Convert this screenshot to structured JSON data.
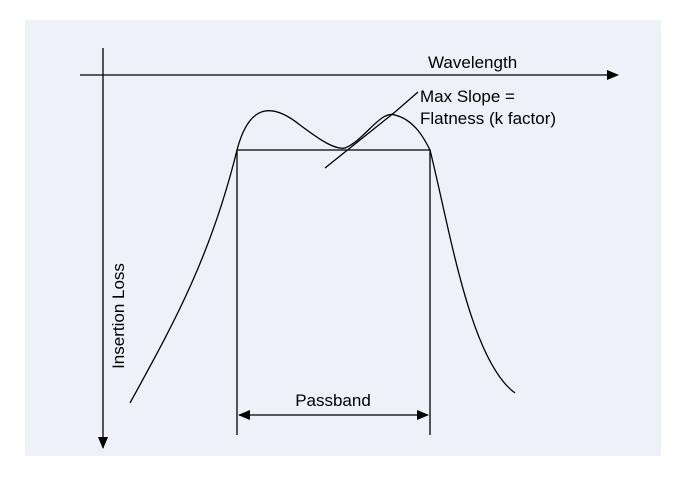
{
  "axes": {
    "x_label": "Wavelength",
    "y_label": "Insertion Loss"
  },
  "annotation": {
    "line1": "Max Slope =",
    "line2": "Flatness (k factor)"
  },
  "passband_label": "Passband"
}
